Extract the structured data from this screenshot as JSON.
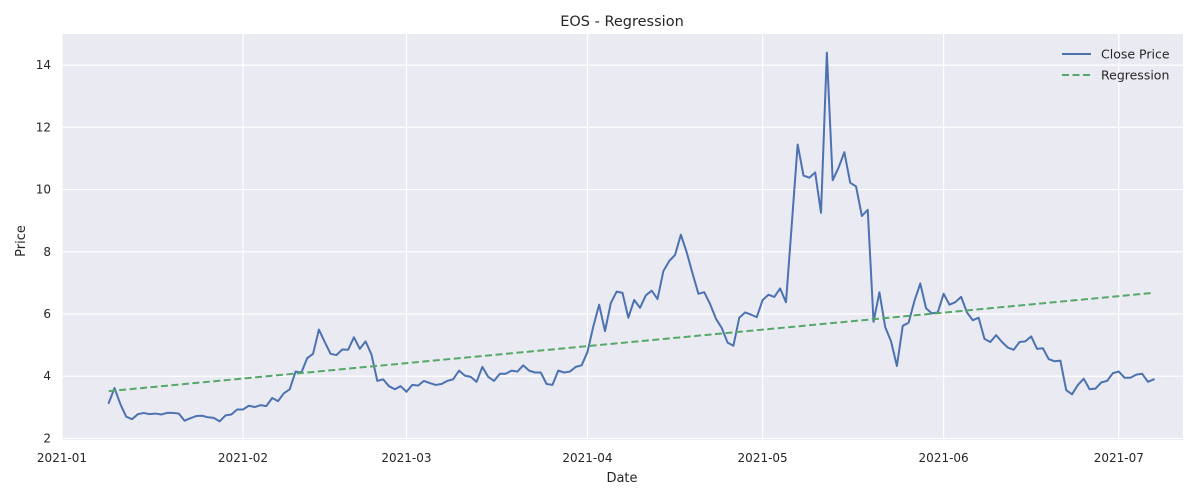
{
  "chart_data": {
    "type": "line",
    "title": "EOS - Regression",
    "xlabel": "Date",
    "ylabel": "Price",
    "xlim": [
      "2021-01-01",
      "2021-07-12"
    ],
    "ylim": [
      1.95,
      15.0
    ],
    "grid": true,
    "legend_position": "top-right",
    "x_ticks": [
      "2021-01",
      "2021-02",
      "2021-03",
      "2021-04",
      "2021-05",
      "2021-06",
      "2021-07"
    ],
    "y_ticks": [
      2,
      4,
      6,
      8,
      10,
      12,
      14
    ],
    "series": [
      {
        "name": "Close Price",
        "color": "#4c72b0",
        "style": "solid",
        "points": [
          [
            "2021-01-09",
            3.14
          ],
          [
            "2021-01-10",
            3.62
          ],
          [
            "2021-01-11",
            3.1
          ],
          [
            "2021-01-12",
            2.7
          ],
          [
            "2021-01-13",
            2.62
          ],
          [
            "2021-01-14",
            2.78
          ],
          [
            "2021-01-15",
            2.82
          ],
          [
            "2021-01-16",
            2.78
          ],
          [
            "2021-01-17",
            2.8
          ],
          [
            "2021-01-18",
            2.77
          ],
          [
            "2021-01-19",
            2.82
          ],
          [
            "2021-01-20",
            2.82
          ],
          [
            "2021-01-21",
            2.8
          ],
          [
            "2021-01-22",
            2.57
          ],
          [
            "2021-01-23",
            2.65
          ],
          [
            "2021-01-24",
            2.72
          ],
          [
            "2021-01-25",
            2.73
          ],
          [
            "2021-01-26",
            2.68
          ],
          [
            "2021-01-27",
            2.66
          ],
          [
            "2021-01-28",
            2.55
          ],
          [
            "2021-01-29",
            2.74
          ],
          [
            "2021-01-30",
            2.77
          ],
          [
            "2021-01-31",
            2.93
          ],
          [
            "2021-02-01",
            2.93
          ],
          [
            "2021-02-02",
            3.05
          ],
          [
            "2021-02-03",
            3.01
          ],
          [
            "2021-02-04",
            3.07
          ],
          [
            "2021-02-05",
            3.04
          ],
          [
            "2021-02-06",
            3.3
          ],
          [
            "2021-02-07",
            3.2
          ],
          [
            "2021-02-08",
            3.45
          ],
          [
            "2021-02-09",
            3.58
          ],
          [
            "2021-02-10",
            4.15
          ],
          [
            "2021-02-11",
            4.12
          ],
          [
            "2021-02-12",
            4.58
          ],
          [
            "2021-02-13",
            4.72
          ],
          [
            "2021-02-14",
            5.5
          ],
          [
            "2021-02-15",
            5.1
          ],
          [
            "2021-02-16",
            4.72
          ],
          [
            "2021-02-17",
            4.68
          ],
          [
            "2021-02-18",
            4.86
          ],
          [
            "2021-02-19",
            4.85
          ],
          [
            "2021-02-20",
            5.25
          ],
          [
            "2021-02-21",
            4.88
          ],
          [
            "2021-02-22",
            5.12
          ],
          [
            "2021-02-23",
            4.7
          ],
          [
            "2021-02-24",
            3.85
          ],
          [
            "2021-02-25",
            3.9
          ],
          [
            "2021-02-26",
            3.68
          ],
          [
            "2021-02-27",
            3.58
          ],
          [
            "2021-02-28",
            3.68
          ],
          [
            "2021-03-01",
            3.5
          ],
          [
            "2021-03-02",
            3.72
          ],
          [
            "2021-03-03",
            3.7
          ],
          [
            "2021-03-04",
            3.85
          ],
          [
            "2021-03-05",
            3.78
          ],
          [
            "2021-03-06",
            3.72
          ],
          [
            "2021-03-07",
            3.75
          ],
          [
            "2021-03-08",
            3.85
          ],
          [
            "2021-03-09",
            3.9
          ],
          [
            "2021-03-10",
            4.18
          ],
          [
            "2021-03-11",
            4.02
          ],
          [
            "2021-03-12",
            3.98
          ],
          [
            "2021-03-13",
            3.82
          ],
          [
            "2021-03-14",
            4.3
          ],
          [
            "2021-03-15",
            3.98
          ],
          [
            "2021-03-16",
            3.85
          ],
          [
            "2021-03-17",
            4.08
          ],
          [
            "2021-03-18",
            4.08
          ],
          [
            "2021-03-19",
            4.18
          ],
          [
            "2021-03-20",
            4.15
          ],
          [
            "2021-03-21",
            4.35
          ],
          [
            "2021-03-22",
            4.18
          ],
          [
            "2021-03-23",
            4.12
          ],
          [
            "2021-03-24",
            4.12
          ],
          [
            "2021-03-25",
            3.75
          ],
          [
            "2021-03-26",
            3.72
          ],
          [
            "2021-03-27",
            4.18
          ],
          [
            "2021-03-28",
            4.12
          ],
          [
            "2021-03-29",
            4.15
          ],
          [
            "2021-03-30",
            4.3
          ],
          [
            "2021-03-31",
            4.35
          ],
          [
            "2021-04-01",
            4.78
          ],
          [
            "2021-04-02",
            5.6
          ],
          [
            "2021-04-03",
            6.3
          ],
          [
            "2021-04-04",
            5.45
          ],
          [
            "2021-04-05",
            6.35
          ],
          [
            "2021-04-06",
            6.72
          ],
          [
            "2021-04-07",
            6.68
          ],
          [
            "2021-04-08",
            5.88
          ],
          [
            "2021-04-09",
            6.45
          ],
          [
            "2021-04-10",
            6.2
          ],
          [
            "2021-04-11",
            6.6
          ],
          [
            "2021-04-12",
            6.75
          ],
          [
            "2021-04-13",
            6.48
          ],
          [
            "2021-04-14",
            7.38
          ],
          [
            "2021-04-15",
            7.7
          ],
          [
            "2021-04-16",
            7.9
          ],
          [
            "2021-04-17",
            8.55
          ],
          [
            "2021-04-18",
            7.98
          ],
          [
            "2021-04-19",
            7.3
          ],
          [
            "2021-04-20",
            6.65
          ],
          [
            "2021-04-21",
            6.7
          ],
          [
            "2021-04-22",
            6.32
          ],
          [
            "2021-04-23",
            5.85
          ],
          [
            "2021-04-24",
            5.55
          ],
          [
            "2021-04-25",
            5.08
          ],
          [
            "2021-04-26",
            4.98
          ],
          [
            "2021-04-27",
            5.88
          ],
          [
            "2021-04-28",
            6.05
          ],
          [
            "2021-04-29",
            5.98
          ],
          [
            "2021-04-30",
            5.9
          ],
          [
            "2021-05-01",
            6.45
          ],
          [
            "2021-05-02",
            6.62
          ],
          [
            "2021-05-03",
            6.55
          ],
          [
            "2021-05-04",
            6.82
          ],
          [
            "2021-05-05",
            6.38
          ],
          [
            "2021-05-06",
            8.9
          ],
          [
            "2021-05-07",
            11.45
          ],
          [
            "2021-05-08",
            10.45
          ],
          [
            "2021-05-09",
            10.38
          ],
          [
            "2021-05-10",
            10.55
          ],
          [
            "2021-05-11",
            9.25
          ],
          [
            "2021-05-12",
            14.4
          ],
          [
            "2021-05-13",
            10.3
          ],
          [
            "2021-05-14",
            10.7
          ],
          [
            "2021-05-15",
            11.2
          ],
          [
            "2021-05-16",
            10.22
          ],
          [
            "2021-05-17",
            10.1
          ],
          [
            "2021-05-18",
            9.15
          ],
          [
            "2021-05-19",
            9.35
          ],
          [
            "2021-05-20",
            5.75
          ],
          [
            "2021-05-21",
            6.7
          ],
          [
            "2021-05-22",
            5.58
          ],
          [
            "2021-05-23",
            5.12
          ],
          [
            "2021-05-24",
            4.33
          ],
          [
            "2021-05-25",
            5.62
          ],
          [
            "2021-05-26",
            5.72
          ],
          [
            "2021-05-27",
            6.42
          ],
          [
            "2021-05-28",
            6.98
          ],
          [
            "2021-05-29",
            6.18
          ],
          [
            "2021-05-30",
            6.02
          ],
          [
            "2021-05-31",
            6.05
          ],
          [
            "2021-06-01",
            6.65
          ],
          [
            "2021-06-02",
            6.3
          ],
          [
            "2021-06-03",
            6.38
          ],
          [
            "2021-06-04",
            6.55
          ],
          [
            "2021-06-05",
            6.05
          ],
          [
            "2021-06-06",
            5.8
          ],
          [
            "2021-06-07",
            5.88
          ],
          [
            "2021-06-08",
            5.2
          ],
          [
            "2021-06-09",
            5.1
          ],
          [
            "2021-06-10",
            5.32
          ],
          [
            "2021-06-11",
            5.1
          ],
          [
            "2021-06-12",
            4.92
          ],
          [
            "2021-06-13",
            4.85
          ],
          [
            "2021-06-14",
            5.1
          ],
          [
            "2021-06-15",
            5.12
          ],
          [
            "2021-06-16",
            5.28
          ],
          [
            "2021-06-17",
            4.88
          ],
          [
            "2021-06-18",
            4.9
          ],
          [
            "2021-06-19",
            4.55
          ],
          [
            "2021-06-20",
            4.48
          ],
          [
            "2021-06-21",
            4.5
          ],
          [
            "2021-06-22",
            3.55
          ],
          [
            "2021-06-23",
            3.42
          ],
          [
            "2021-06-24",
            3.72
          ],
          [
            "2021-06-25",
            3.92
          ],
          [
            "2021-06-26",
            3.58
          ],
          [
            "2021-06-27",
            3.6
          ],
          [
            "2021-06-28",
            3.8
          ],
          [
            "2021-06-29",
            3.85
          ],
          [
            "2021-06-30",
            4.1
          ],
          [
            "2021-07-01",
            4.15
          ],
          [
            "2021-07-02",
            3.95
          ],
          [
            "2021-07-03",
            3.95
          ],
          [
            "2021-07-04",
            4.05
          ],
          [
            "2021-07-05",
            4.08
          ],
          [
            "2021-07-06",
            3.82
          ],
          [
            "2021-07-07",
            3.9
          ]
        ]
      },
      {
        "name": "Regression",
        "color": "#55a868",
        "style": "dashed",
        "points": [
          [
            "2021-01-09",
            3.52
          ],
          [
            "2021-07-07",
            6.68
          ]
        ]
      }
    ]
  }
}
